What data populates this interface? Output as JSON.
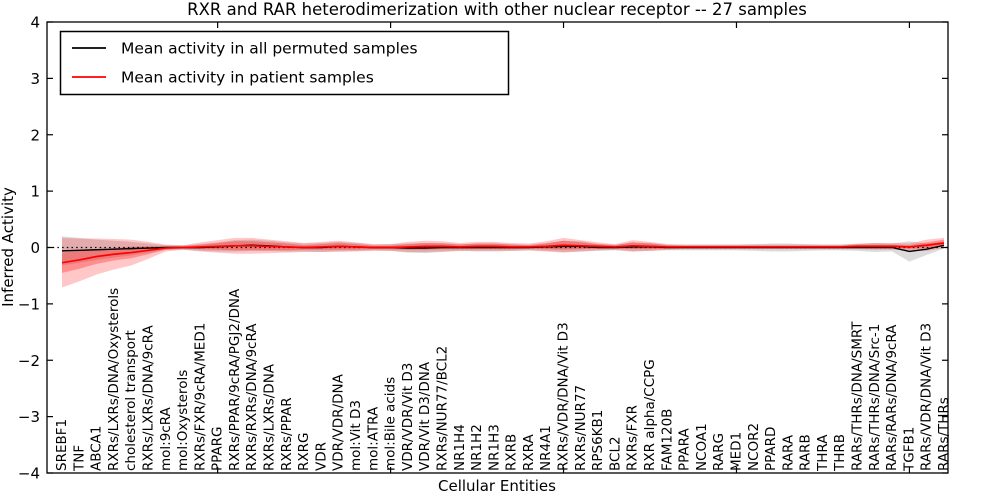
{
  "chart_data": {
    "type": "line",
    "title": "RXR and RAR heterodimerization with other nuclear receptor -- 27 samples",
    "xlabel": "Cellular Entities",
    "ylabel": "Inferred Activity",
    "ylim": [
      -4,
      4
    ],
    "ytick_labels": [
      "4",
      "3",
      "2",
      "1",
      "0",
      "−1",
      "−2",
      "−3",
      "−4"
    ],
    "ytick_values": [
      4,
      3,
      2,
      1,
      0,
      -1,
      -2,
      -3,
      -4
    ],
    "xtick_values": [
      10,
      20,
      30,
      40,
      50
    ],
    "grid": false,
    "legend_position": "upper left",
    "zero_line": {
      "value": 0,
      "style": "dotted",
      "color": "#000000"
    },
    "categories": [
      "SREBF1",
      "TNF",
      "ABCA1",
      "RXRs/LXRs/DNA/Oxysterols",
      "cholesterol transport",
      "RXRs/LXRs/DNA/9cRA",
      "mol:9cRA",
      "mol:Oxysterols",
      "RXRs/FXR/9cRA/MED1",
      "PPARG",
      "RXRs/PPAR/9cRA/PGJ2/DNA",
      "RXRs/RXRs/DNA/9cRA",
      "RXRs/LXRs/DNA",
      "RXRs/PPAR",
      "RXRG",
      "VDR",
      "VDR/VDR/DNA",
      "mol:Vit D3",
      "mol:ATRA",
      "mol:Bile acids",
      "VDR/VDR/Vit D3",
      "VDR/Vit D3/DNA",
      "RXRs/NUR77/BCL2",
      "NR1H4",
      "NR1H2",
      "NR1H3",
      "RXRB",
      "RXRA",
      "NR4A1",
      "RXRs/VDR/DNA/Vit D3",
      "RXRs/NUR77",
      "RPS6KB1",
      "BCL2",
      "RXRs/FXR",
      "RXR alpha/CCPG",
      "FAM120B",
      "PPARA",
      "NCOA1",
      "RARG",
      "MED1",
      "NCOR2",
      "PPARD",
      "RARA",
      "RARB",
      "THRA",
      "THRB",
      "RARs/THRs/DNA/SMRT",
      "RARs/THRs/DNA/Src-1",
      "RARs/RARs/DNA/9cRA",
      "TGFB1",
      "RARs/VDR/DNA/Vit D3",
      "RARs/THRs"
    ],
    "series": [
      {
        "name": "Mean activity in all permuted samples",
        "color": "#000000",
        "values": [
          -0.06,
          -0.05,
          -0.04,
          -0.03,
          -0.02,
          -0.01,
          0,
          0,
          0,
          0.01,
          0.03,
          0.04,
          0.03,
          0.01,
          0,
          0,
          0.02,
          0.01,
          0,
          0,
          -0.01,
          -0.01,
          0,
          0,
          0,
          0,
          0,
          0,
          0.01,
          0.02,
          0.02,
          0,
          0,
          0.01,
          0.01,
          0,
          0,
          0,
          0,
          0,
          0,
          0,
          0,
          0,
          0,
          0,
          0,
          0,
          0,
          -0.07,
          -0.03,
          0.04
        ],
        "bands": [
          {
            "spread": [
              0.26,
              0.22,
              0.18,
              0.15,
              0.12,
              0.08,
              0.04,
              0.04,
              0.06,
              0.08,
              0.1,
              0.1,
              0.09,
              0.08,
              0.07,
              0.08,
              0.08,
              0.07,
              0.05,
              0.06,
              0.08,
              0.09,
              0.08,
              0.06,
              0.07,
              0.07,
              0.06,
              0.05,
              0.07,
              0.1,
              0.09,
              0.06,
              0.05,
              0.08,
              0.07,
              0.05,
              0.05,
              0.05,
              0.05,
              0.05,
              0.06,
              0.07,
              0.07,
              0.06,
              0.05,
              0.05,
              0.06,
              0.08,
              0.07,
              0.18,
              0.1,
              0.06
            ],
            "fill": "#808080",
            "opacity": 0.28
          }
        ]
      },
      {
        "name": "Mean activity in patient samples",
        "color": "#ff0000",
        "values": [
          -0.27,
          -0.22,
          -0.16,
          -0.12,
          -0.09,
          -0.05,
          -0.01,
          0,
          0.01,
          0.02,
          0.03,
          0.03,
          0.02,
          0.01,
          0,
          0.01,
          0.02,
          0.01,
          0,
          0,
          0.01,
          0.02,
          0.02,
          0.01,
          0.02,
          0.02,
          0.01,
          0.01,
          0.02,
          0.04,
          0.03,
          0.02,
          0.01,
          0.03,
          0.02,
          0.01,
          0.01,
          0.01,
          0.01,
          0.01,
          0.01,
          0.01,
          0.01,
          0.01,
          0.01,
          0.01,
          0.02,
          0.02,
          0.02,
          0.01,
          0.04,
          0.08
        ],
        "bands": [
          {
            "spread": [
              0.44,
              0.38,
              0.32,
              0.27,
              0.23,
              0.15,
              0.06,
              0.04,
              0.08,
              0.11,
              0.14,
              0.14,
              0.12,
              0.1,
              0.08,
              0.09,
              0.1,
              0.08,
              0.06,
              0.06,
              0.09,
              0.1,
              0.09,
              0.07,
              0.08,
              0.08,
              0.07,
              0.06,
              0.09,
              0.13,
              0.1,
              0.07,
              0.05,
              0.1,
              0.08,
              0.05,
              0.04,
              0.04,
              0.04,
              0.04,
              0.04,
              0.04,
              0.04,
              0.04,
              0.04,
              0.04,
              0.05,
              0.06,
              0.06,
              0.06,
              0.1,
              0.09
            ],
            "fill": "#ff0000",
            "opacity": 0.22
          },
          {
            "spread": [
              0.18,
              0.16,
              0.13,
              0.11,
              0.1,
              0.07,
              0.03,
              0.02,
              0.04,
              0.06,
              0.08,
              0.08,
              0.07,
              0.06,
              0.04,
              0.05,
              0.06,
              0.05,
              0.03,
              0.03,
              0.05,
              0.06,
              0.05,
              0.04,
              0.05,
              0.05,
              0.04,
              0.03,
              0.05,
              0.08,
              0.06,
              0.04,
              0.03,
              0.06,
              0.05,
              0.03,
              0.02,
              0.02,
              0.02,
              0.02,
              0.02,
              0.02,
              0.02,
              0.02,
              0.02,
              0.02,
              0.03,
              0.03,
              0.03,
              0.03,
              0.05,
              0.06
            ],
            "fill": "#ff0000",
            "opacity": 0.28
          }
        ]
      }
    ]
  }
}
